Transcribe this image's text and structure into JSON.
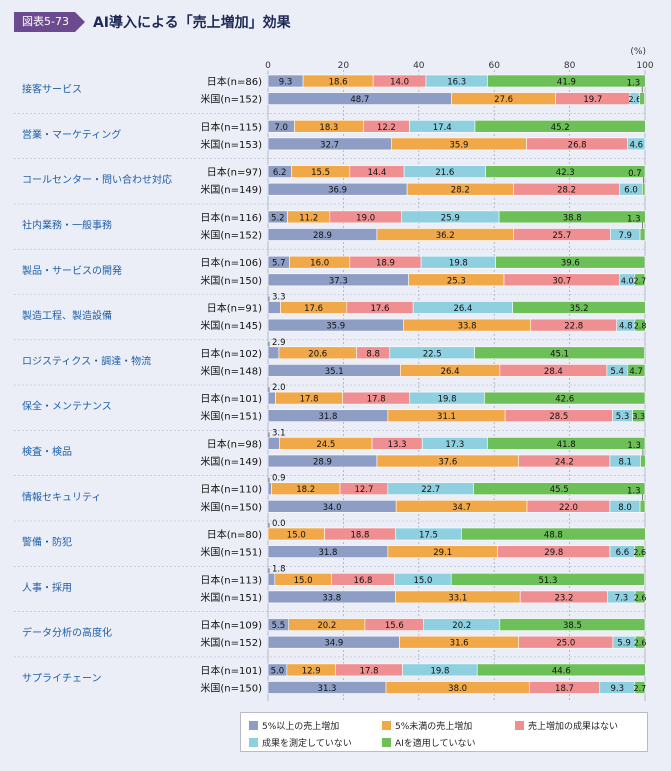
{
  "figure": {
    "label": "図表5-73",
    "title": "AI導入による「売上増加」効果"
  },
  "chart_data": {
    "type": "bar",
    "orientation": "horizontal",
    "stacked": true,
    "percent_unit": "(%)",
    "xlim": [
      0,
      100
    ],
    "x_ticks": [
      "0",
      "20",
      "40",
      "60",
      "80",
      "100"
    ],
    "series": [
      {
        "name": "5%以上の売上増加",
        "color": "#8d9dc4"
      },
      {
        "name": "5%未満の売上増加",
        "color": "#f0a848"
      },
      {
        "name": "売上増加の成果はない",
        "color": "#ef8f92"
      },
      {
        "name": "成果を測定していない",
        "color": "#8ed0e0"
      },
      {
        "name": "AIを適用していない",
        "color": "#6dbf58"
      }
    ],
    "categories": [
      {
        "name": "接客サービス",
        "rows": [
          {
            "label": "日本(n=86)",
            "values": [
              9.3,
              18.6,
              14.0,
              16.3,
              41.9
            ]
          },
          {
            "label": "米国(n=152)",
            "values": [
              48.7,
              27.6,
              19.7,
              2.6,
              1.3
            ]
          }
        ]
      },
      {
        "name": "営業・マーケティング",
        "rows": [
          {
            "label": "日本(n=115)",
            "values": [
              7.0,
              18.3,
              12.2,
              17.4,
              45.2
            ]
          },
          {
            "label": "米国(n=153)",
            "values": [
              32.7,
              35.9,
              26.8,
              4.6,
              null
            ]
          }
        ]
      },
      {
        "name": "コールセンター・問い合わせ対応",
        "rows": [
          {
            "label": "日本(n=97)",
            "values": [
              6.2,
              15.5,
              14.4,
              21.6,
              42.3
            ]
          },
          {
            "label": "米国(n=149)",
            "values": [
              36.9,
              28.2,
              28.2,
              6.0,
              0.7
            ]
          }
        ]
      },
      {
        "name": "社内業務・一般事務",
        "rows": [
          {
            "label": "日本(n=116)",
            "values": [
              5.2,
              11.2,
              19.0,
              25.9,
              38.8
            ]
          },
          {
            "label": "米国(n=152)",
            "values": [
              28.9,
              36.2,
              25.7,
              7.9,
              1.3
            ]
          }
        ]
      },
      {
        "name": "製品・サービスの開発",
        "rows": [
          {
            "label": "日本(n=106)",
            "values": [
              5.7,
              16.0,
              18.9,
              19.8,
              39.6
            ]
          },
          {
            "label": "米国(n=150)",
            "values": [
              37.3,
              25.3,
              30.7,
              4.0,
              2.7
            ]
          }
        ]
      },
      {
        "name": "製造工程、製造設備",
        "rows": [
          {
            "label": "日本(n=91)",
            "values": [
              3.3,
              17.6,
              17.6,
              26.4,
              35.2
            ]
          },
          {
            "label": "米国(n=145)",
            "values": [
              35.9,
              33.8,
              22.8,
              4.8,
              2.8
            ]
          }
        ]
      },
      {
        "name": "ロジスティクス・調達・物流",
        "rows": [
          {
            "label": "日本(n=102)",
            "values": [
              2.9,
              20.6,
              8.8,
              22.5,
              45.1
            ]
          },
          {
            "label": "米国(n=148)",
            "values": [
              35.1,
              26.4,
              28.4,
              5.4,
              4.7
            ]
          }
        ]
      },
      {
        "name": "保全・メンテナンス",
        "rows": [
          {
            "label": "日本(n=101)",
            "values": [
              2.0,
              17.8,
              17.8,
              19.8,
              42.6
            ]
          },
          {
            "label": "米国(n=151)",
            "values": [
              31.8,
              31.1,
              28.5,
              5.3,
              3.3
            ]
          }
        ]
      },
      {
        "name": "検査・検品",
        "rows": [
          {
            "label": "日本(n=98)",
            "values": [
              3.1,
              24.5,
              13.3,
              17.3,
              41.8
            ]
          },
          {
            "label": "米国(n=149)",
            "values": [
              28.9,
              37.6,
              24.2,
              8.1,
              1.3
            ]
          }
        ]
      },
      {
        "name": "情報セキュリティ",
        "rows": [
          {
            "label": "日本(n=110)",
            "values": [
              0.9,
              18.2,
              12.7,
              22.7,
              45.5
            ]
          },
          {
            "label": "米国(n=150)",
            "values": [
              34.0,
              34.7,
              22.0,
              8.0,
              1.3
            ]
          }
        ]
      },
      {
        "name": "警備・防犯",
        "rows": [
          {
            "label": "日本(n=80)",
            "values": [
              0.0,
              15.0,
              18.8,
              17.5,
              48.8
            ]
          },
          {
            "label": "米国(n=151)",
            "values": [
              31.8,
              29.1,
              29.8,
              6.6,
              2.6
            ]
          }
        ]
      },
      {
        "name": "人事・採用",
        "rows": [
          {
            "label": "日本(n=113)",
            "values": [
              1.8,
              15.0,
              16.8,
              15.0,
              51.3
            ]
          },
          {
            "label": "米国(n=151)",
            "values": [
              33.8,
              33.1,
              23.2,
              7.3,
              2.6
            ]
          }
        ]
      },
      {
        "name": "データ分析の高度化",
        "rows": [
          {
            "label": "日本(n=109)",
            "values": [
              5.5,
              20.2,
              15.6,
              20.2,
              38.5
            ]
          },
          {
            "label": "米国(n=152)",
            "values": [
              34.9,
              31.6,
              25.0,
              5.9,
              2.6
            ]
          }
        ]
      },
      {
        "name": "サプライチェーン",
        "rows": [
          {
            "label": "日本(n=101)",
            "values": [
              5.0,
              12.9,
              17.8,
              19.8,
              44.6
            ]
          },
          {
            "label": "米国(n=150)",
            "values": [
              31.3,
              38.0,
              18.7,
              9.3,
              2.7
            ]
          }
        ]
      }
    ]
  }
}
